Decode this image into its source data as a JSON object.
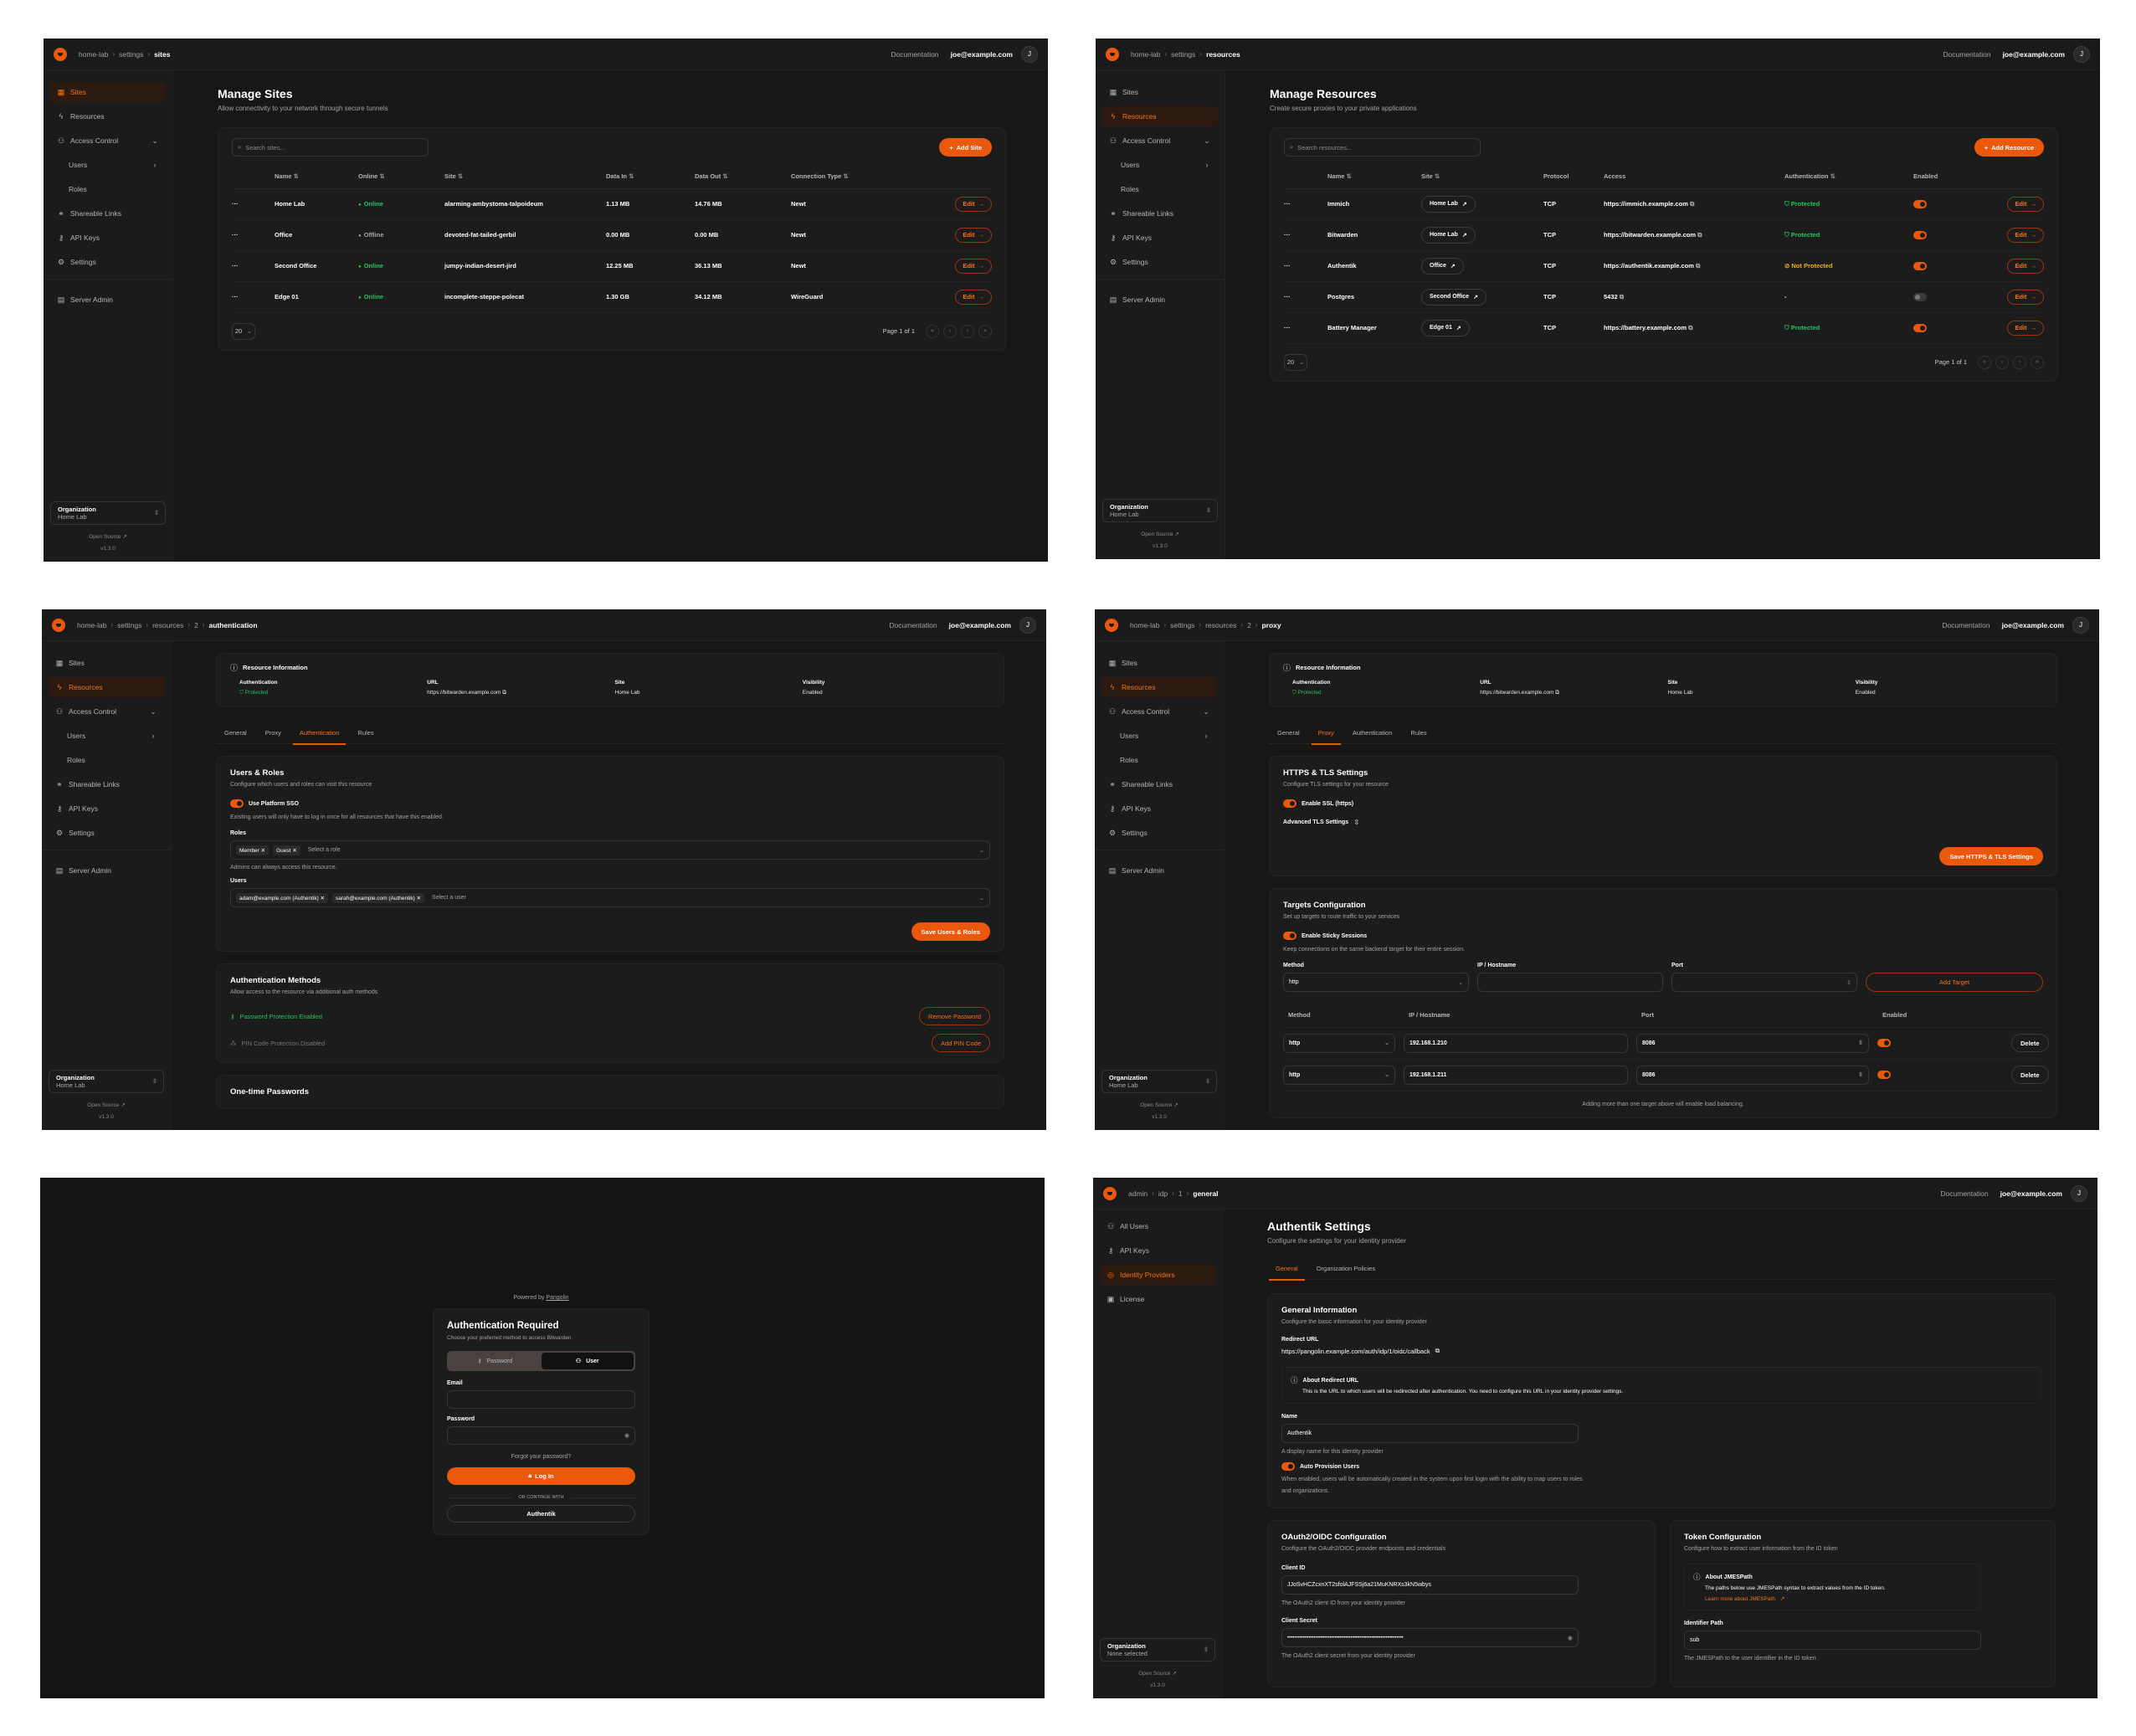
{
  "colors": {
    "accent": "#ea580c",
    "success": "#22c55e",
    "warning": "#eab308",
    "background": "#171717",
    "sidebar": "#1b1b1b",
    "card": "#1c1c1c"
  },
  "header": {
    "docs_label": "Documentation",
    "user_email": "joe@example.com",
    "avatar_initial": "J"
  },
  "org_sidebar": {
    "items": [
      {
        "label": "Sites",
        "icon": "sites-icon"
      },
      {
        "label": "Resources",
        "icon": "resources-icon"
      },
      {
        "label": "Access Control",
        "icon": "access-control-icon",
        "chevron": "down"
      },
      {
        "label": "Users",
        "sub": true,
        "chevron": "right"
      },
      {
        "label": "Roles",
        "sub": true
      },
      {
        "label": "Shareable Links",
        "icon": "link-icon"
      },
      {
        "label": "API Keys",
        "icon": "key-icon"
      },
      {
        "label": "Settings",
        "icon": "gear-icon"
      },
      {
        "label": "Server Admin",
        "icon": "server-icon",
        "divider_before": true
      }
    ],
    "org_label": "Organization",
    "org_value": "Home Lab",
    "open_source": "Open Source",
    "version": "v1.3.0"
  },
  "admin_sidebar": {
    "items": [
      {
        "label": "All Users",
        "icon": "users-icon"
      },
      {
        "label": "API Keys",
        "icon": "key-icon"
      },
      {
        "label": "Identity Providers",
        "icon": "fingerprint-icon"
      },
      {
        "label": "License",
        "icon": "license-icon"
      }
    ],
    "org_label": "Organization",
    "org_value": "None selected",
    "open_source": "Open Source",
    "version": "v1.3.0"
  },
  "sites": {
    "breadcrumb": [
      "home-lab",
      "settings",
      "sites"
    ],
    "active_nav": "Sites",
    "title": "Manage Sites",
    "subtitle": "Allow connectivity to your network through secure tunnels",
    "search_placeholder": "Search sites...",
    "add_label": "Add Site",
    "columns": [
      {
        "label": "Name",
        "sortable": true
      },
      {
        "label": "Online",
        "sortable": true
      },
      {
        "label": "Site",
        "sortable": true
      },
      {
        "label": "Data In",
        "sortable": true
      },
      {
        "label": "Data Out",
        "sortable": true
      },
      {
        "label": "Connection Type",
        "sortable": true
      }
    ],
    "rows": [
      {
        "name": "Home Lab",
        "online": "Online",
        "status": "online",
        "site": "alarming-ambystoma-talpoideum",
        "data_in": "1.13 MB",
        "data_out": "14.76 MB",
        "type": "Newt"
      },
      {
        "name": "Office",
        "online": "Offline",
        "status": "offline",
        "site": "devoted-fat-tailed-gerbil",
        "data_in": "0.00 MB",
        "data_out": "0.00 MB",
        "type": "Newt"
      },
      {
        "name": "Second Office",
        "online": "Online",
        "status": "online",
        "site": "jumpy-indian-desert-jird",
        "data_in": "12.25 MB",
        "data_out": "36.13 MB",
        "type": "Newt"
      },
      {
        "name": "Edge 01",
        "online": "Online",
        "status": "online",
        "site": "incomplete-steppe-polecat",
        "data_in": "1.30 GB",
        "data_out": "34.12 MB",
        "type": "WireGuard"
      }
    ],
    "edit_label": "Edit",
    "page_size": "20",
    "page_label": "Page 1 of 1"
  },
  "resources": {
    "breadcrumb": [
      "home-lab",
      "settings",
      "resources"
    ],
    "active_nav": "Resources",
    "title": "Manage Resources",
    "subtitle": "Create secure proxies to your private applications",
    "search_placeholder": "Search resources...",
    "add_label": "Add Resource",
    "columns": [
      {
        "label": "Name",
        "sortable": true
      },
      {
        "label": "Site",
        "sortable": true
      },
      {
        "label": "Protocol",
        "sortable": false
      },
      {
        "label": "Access",
        "sortable": false
      },
      {
        "label": "Authentication",
        "sortable": true
      },
      {
        "label": "Enabled",
        "sortable": false
      }
    ],
    "rows": [
      {
        "name": "Immich",
        "site": "Home Lab",
        "protocol": "TCP",
        "access": "https://immich.example.com",
        "auth": "Protected",
        "auth_state": "protected",
        "enabled": true
      },
      {
        "name": "Bitwarden",
        "site": "Home Lab",
        "protocol": "TCP",
        "access": "https://bitwarden.example.com",
        "auth": "Protected",
        "auth_state": "protected",
        "enabled": true
      },
      {
        "name": "Authentik",
        "site": "Office",
        "protocol": "TCP",
        "access": "https://authentik.example.com",
        "auth": "Not Protected",
        "auth_state": "not-protected",
        "enabled": true
      },
      {
        "name": "Postgres",
        "site": "Second Office",
        "protocol": "TCP",
        "access": "5432",
        "auth": "-",
        "auth_state": "none",
        "enabled": false
      },
      {
        "name": "Battery Manager",
        "site": "Edge 01",
        "protocol": "TCP",
        "access": "https://battery.example.com",
        "auth": "Protected",
        "auth_state": "protected",
        "enabled": true
      }
    ],
    "edit_label": "Edit",
    "page_size": "20",
    "page_label": "Page 1 of 1"
  },
  "resource_info": {
    "title": "Resource Information",
    "fields": [
      {
        "label": "Authentication",
        "value": "Protected"
      },
      {
        "label": "URL",
        "value": "https://bitwarden.example.com"
      },
      {
        "label": "Site",
        "value": "Home Lab"
      },
      {
        "label": "Visibility",
        "value": "Enabled"
      }
    ],
    "tabs": [
      "General",
      "Proxy",
      "Authentication",
      "Rules"
    ]
  },
  "authentication": {
    "breadcrumb": [
      "home-lab",
      "settings",
      "resources",
      "2",
      "authentication"
    ],
    "active_nav": "Resources",
    "active_tab": "Authentication",
    "users_roles": {
      "title": "Users & Roles",
      "desc": "Configure which users and roles can visit this resource",
      "sso_label": "Use Platform SSO",
      "sso_enabled": true,
      "sso_note": "Existing users will only have to log in once for all resources that have this enabled.",
      "roles_label": "Roles",
      "roles": [
        "Member",
        "Guest"
      ],
      "roles_placeholder": "Select a role",
      "admins_note": "Admins can always access this resource.",
      "users_label": "Users",
      "users": [
        "adam@example.com (Authentik)",
        "sarah@example.com (Authentik)"
      ],
      "users_placeholder": "Select a user",
      "save_label": "Save Users & Roles"
    },
    "methods": {
      "title": "Authentication Methods",
      "desc": "Allow access to the resource via additional auth methods",
      "password_status": "Password Protection Enabled",
      "password_action": "Remove Password",
      "pin_status": "PIN Code Protection Disabled",
      "pin_action": "Add PIN Code"
    },
    "otp_title": "One-time Passwords"
  },
  "proxy": {
    "breadcrumb": [
      "home-lab",
      "settings",
      "resources",
      "2",
      "proxy"
    ],
    "active_nav": "Resources",
    "active_tab": "Proxy",
    "tls": {
      "title": "HTTPS & TLS Settings",
      "desc": "Configure TLS settings for your resource",
      "ssl_label": "Enable SSL (https)",
      "ssl_enabled": true,
      "advanced_label": "Advanced TLS Settings",
      "save_label": "Save HTTPS & TLS Settings"
    },
    "targets": {
      "title": "Targets Configuration",
      "desc": "Set up targets to route traffic to your services",
      "sticky_label": "Enable Sticky Sessions",
      "sticky_enabled": true,
      "sticky_note": "Keep connections on the same backend target for their entire session.",
      "method_label": "Method",
      "ip_label": "IP / Hostname",
      "port_label": "Port",
      "method_value": "http",
      "add_label": "Add Target",
      "columns": [
        "Method",
        "IP / Hostname",
        "Port",
        "Enabled"
      ],
      "rows": [
        {
          "method": "http",
          "ip": "192.168.1.210",
          "port": "8086",
          "enabled": true
        },
        {
          "method": "http",
          "ip": "192.168.1.211",
          "port": "8086",
          "enabled": true
        }
      ],
      "delete_label": "Delete",
      "footer_note": "Adding more than one target above will enable load balancing."
    }
  },
  "login": {
    "powered_by": "Powered by",
    "powered_link": "Pangolin",
    "title": "Authentication Required",
    "desc": "Choose your preferred method to access Bitwarden",
    "tabs": [
      "Password",
      "User"
    ],
    "active_tab": "User",
    "email_label": "Email",
    "password_label": "Password",
    "forgot": "Forgot your password?",
    "login_label": "Log In",
    "divider": "OR CONTINUE WITH",
    "sso_label": "Authentik"
  },
  "idp": {
    "breadcrumb": [
      "admin",
      "idp",
      "1",
      "general"
    ],
    "active_nav": "Identity Providers",
    "title": "Authentik Settings",
    "subtitle": "Configure the settings for your identity provider",
    "tabs": [
      "General",
      "Organization Policies"
    ],
    "active_tab": "General",
    "general": {
      "title": "General Information",
      "desc": "Configure the basic information for your identity provider",
      "redirect_label": "Redirect URL",
      "redirect_url": "https://pangolin.example.com/auth/idp/1/oidc/callback",
      "about_title": "About Redirect URL",
      "about_text": "This is the URL to which users will be redirected after authentication. You need to configure this URL in your identity provider settings.",
      "name_label": "Name",
      "name_value": "Authentik",
      "name_help": "A display name for this identity provider",
      "auto_label": "Auto Provision Users",
      "auto_enabled": true,
      "auto_help": "When enabled, users will be automatically created in the system upon first login with the ability to map users to roles and organizations."
    },
    "oauth": {
      "title": "OAuth2/OIDC Configuration",
      "desc": "Configure the OAuth2/OIDC provider endpoints and credentials",
      "client_id_label": "Client ID",
      "client_id": "JJoSvHCZcxnXT2sfolAJFSSj6a21MuKNRXs3kN5wbys",
      "client_id_help": "The OAuth2 client ID from your identity provider",
      "secret_label": "Client Secret",
      "secret_value": "••••••••••••••••••••••••••••••••••••••••••••••••••••••••••••••••••",
      "secret_help": "The OAuth2 client secret from your identity provider"
    },
    "token": {
      "title": "Token Configuration",
      "desc": "Configure how to extract user information from the ID token",
      "about_title": "About JMESPath",
      "about_text": "The paths below use JMESPath syntax to extract values from the ID token.",
      "about_link": "Learn more about JMESPath",
      "identifier_label": "Identifier Path",
      "identifier_value": "sub",
      "identifier_help": "The JMESPath to the user identifier in the ID token"
    }
  }
}
